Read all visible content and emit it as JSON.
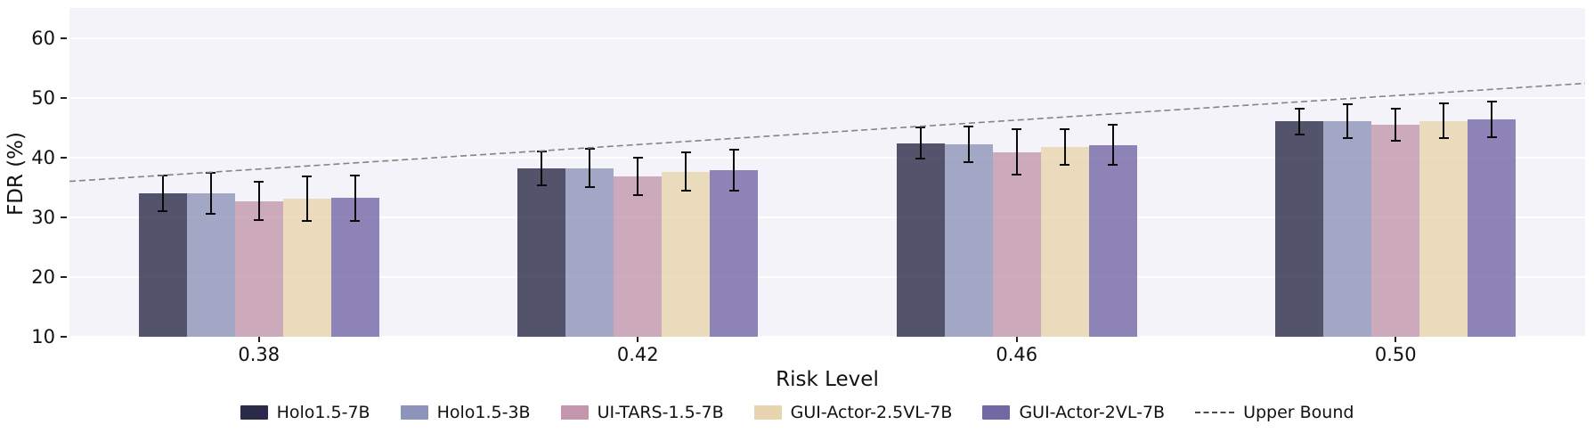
{
  "chart_data": {
    "type": "bar",
    "title": "",
    "xlabel": "Risk Level",
    "ylabel": "FDR (%)",
    "categories": [
      "0.38",
      "0.42",
      "0.46",
      "0.50"
    ],
    "series": [
      {
        "name": "Holo1.5-7B",
        "color": "#2b2a49",
        "values": [
          34.0,
          38.2,
          42.4,
          46.0
        ],
        "errors": [
          3.0,
          2.8,
          2.6,
          2.1
        ]
      },
      {
        "name": "Holo1.5-3B",
        "color": "#8d93b9",
        "values": [
          34.0,
          38.2,
          42.2,
          46.1
        ],
        "errors": [
          3.5,
          3.2,
          3.0,
          2.8
        ]
      },
      {
        "name": "UI-TARS-1.5-7B",
        "color": "#c297ad",
        "values": [
          32.7,
          36.8,
          40.9,
          45.5
        ],
        "errors": [
          3.2,
          3.1,
          3.8,
          2.7
        ]
      },
      {
        "name": "GUI-Actor-2.5VL-7B",
        "color": "#e8d4ae",
        "values": [
          33.1,
          37.6,
          41.8,
          46.1
        ],
        "errors": [
          3.7,
          3.2,
          3.0,
          2.9
        ]
      },
      {
        "name": "GUI-Actor-2VL-7B",
        "color": "#7467a5",
        "values": [
          33.2,
          37.9,
          42.1,
          46.4
        ],
        "errors": [
          3.8,
          3.4,
          3.3,
          3.0
        ]
      }
    ],
    "upper_bound": {
      "name": "Upper Bound",
      "line_style": "dashed",
      "color": "#848484",
      "edge_values": [
        36.0,
        52.4
      ],
      "values_at_categories": [
        38,
        42,
        46,
        50
      ]
    },
    "yticks": [
      10,
      20,
      30,
      40,
      50,
      60
    ],
    "ylim": [
      10,
      65
    ],
    "grid": true,
    "legend_position": "bottom",
    "plot_background": "#f4f3f9",
    "bar_alpha": 0.8
  }
}
